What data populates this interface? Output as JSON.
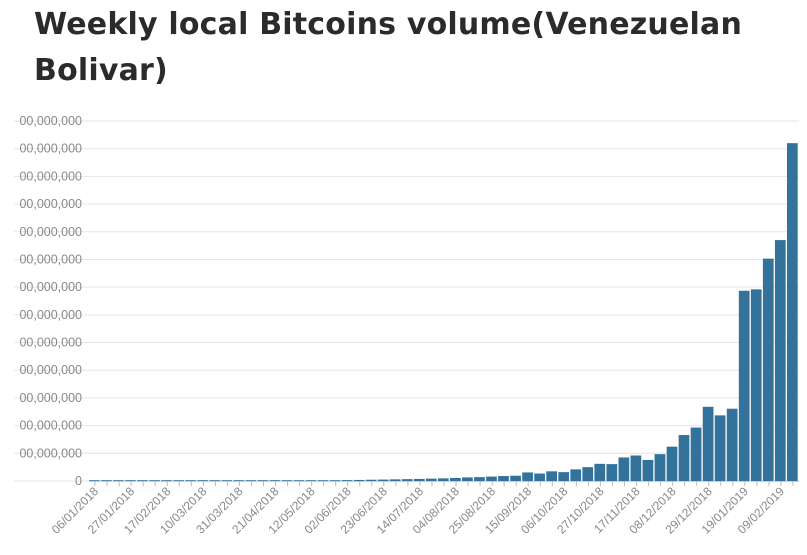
{
  "chart_data": {
    "type": "bar",
    "title": "Weekly local Bitcoins volume(Venezuelan Bolivar)",
    "xlabel": "",
    "ylabel": "",
    "ylim": [
      0,
      1300000000000
    ],
    "grid": true,
    "yticks": [
      {
        "value": 0,
        "label": "0"
      },
      {
        "value": 100000000000,
        "label": "00,000,000"
      },
      {
        "value": 200000000000,
        "label": "00,000,000"
      },
      {
        "value": 300000000000,
        "label": "00,000,000"
      },
      {
        "value": 400000000000,
        "label": "00,000,000"
      },
      {
        "value": 500000000000,
        "label": "00,000,000"
      },
      {
        "value": 600000000000,
        "label": "00,000,000"
      },
      {
        "value": 700000000000,
        "label": "00,000,000"
      },
      {
        "value": 800000000000,
        "label": "00,000,000"
      },
      {
        "value": 900000000000,
        "label": "00,000,000"
      },
      {
        "value": 1000000000000,
        "label": "00,000,000"
      },
      {
        "value": 1100000000000,
        "label": "00,000,000"
      },
      {
        "value": 1200000000000,
        "label": "00,000,000"
      },
      {
        "value": 1300000000000,
        "label": "00,000,000"
      }
    ],
    "categories": [
      "06/01/2018",
      "13/01/2018",
      "20/01/2018",
      "27/01/2018",
      "03/02/2018",
      "10/02/2018",
      "17/02/2018",
      "24/02/2018",
      "03/03/2018",
      "10/03/2018",
      "17/03/2018",
      "24/03/2018",
      "31/03/2018",
      "07/04/2018",
      "14/04/2018",
      "21/04/2018",
      "28/04/2018",
      "05/05/2018",
      "12/05/2018",
      "19/05/2018",
      "26/05/2018",
      "02/06/2018",
      "09/06/2018",
      "16/06/2018",
      "23/06/2018",
      "30/06/2018",
      "07/07/2018",
      "14/07/2018",
      "21/07/2018",
      "28/07/2018",
      "04/08/2018",
      "11/08/2018",
      "18/08/2018",
      "25/08/2018",
      "01/09/2018",
      "08/09/2018",
      "15/09/2018",
      "22/09/2018",
      "29/09/2018",
      "06/10/2018",
      "13/10/2018",
      "20/10/2018",
      "27/10/2018",
      "03/11/2018",
      "10/11/2018",
      "17/11/2018",
      "24/11/2018",
      "01/12/2018",
      "08/12/2018",
      "15/12/2018",
      "22/12/2018",
      "29/12/2018",
      "05/01/2019",
      "12/01/2019",
      "19/01/2019",
      "26/01/2019",
      "02/02/2019",
      "09/02/2019",
      "16/02/2019"
    ],
    "tick_label_every": 3,
    "values": [
      500000000,
      500000000,
      500000000,
      500000000,
      500000000,
      500000000,
      500000000,
      600000000,
      600000000,
      700000000,
      700000000,
      800000000,
      900000000,
      1000000000,
      1100000000,
      1300000000,
      1500000000,
      1700000000,
      2000000000,
      2300000000,
      2700000000,
      3200000000,
      3800000000,
      4500000000,
      5200000000,
      6000000000,
      6800000000,
      7500000000,
      8500000000,
      9500000000,
      11000000000,
      13000000000,
      14000000000,
      16000000000,
      18000000000,
      19000000000,
      31000000000,
      27000000000,
      35000000000,
      32000000000,
      42000000000,
      50000000000,
      62000000000,
      61000000000,
      85000000000,
      92000000000,
      76000000000,
      97000000000,
      124000000000,
      166000000000,
      193000000000,
      268000000000,
      237000000000,
      261000000000,
      687000000000,
      692000000000,
      803000000000,
      870000000000,
      1220000000000
    ]
  }
}
